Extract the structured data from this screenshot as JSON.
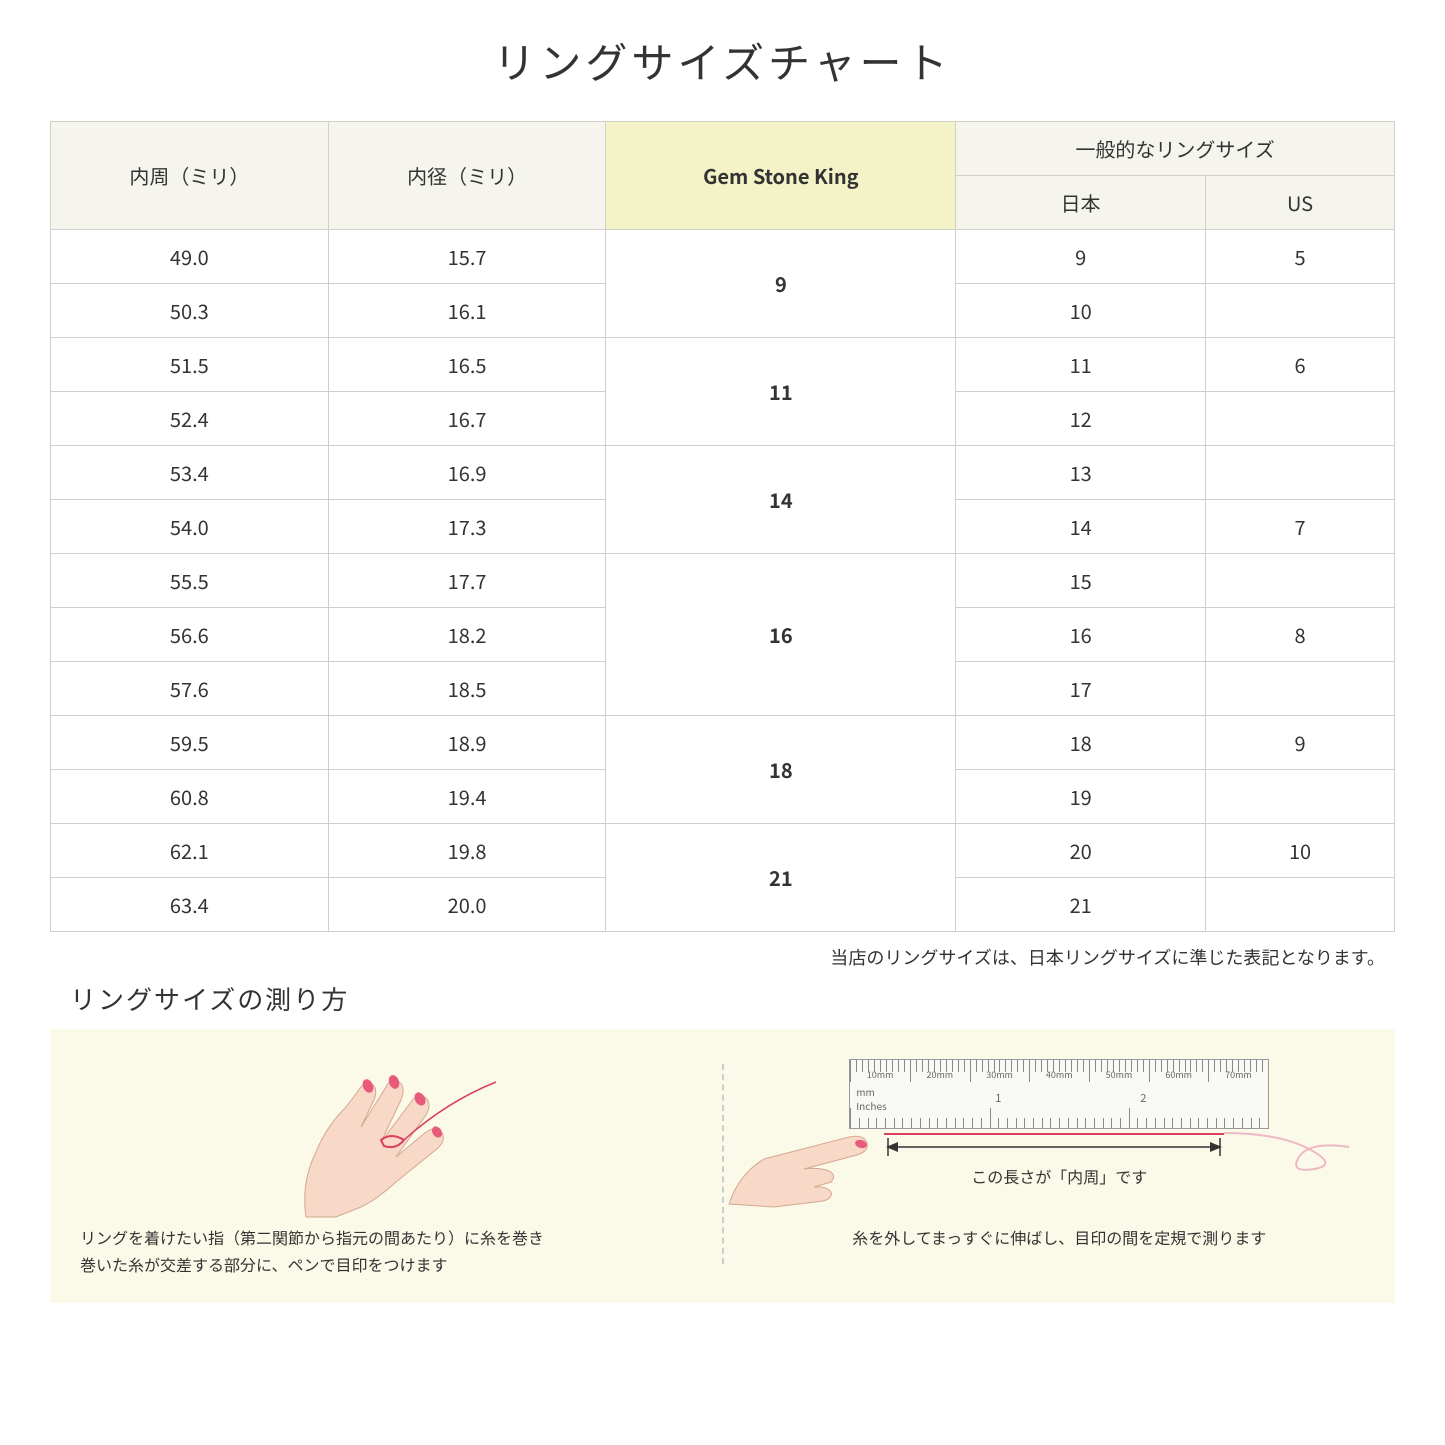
{
  "title": "リングサイズチャート",
  "table": {
    "headers": {
      "circumference": "内周（ミリ）",
      "diameter": "内径（ミリ）",
      "gsk": "Gem Stone King",
      "general": "一般的なリングサイズ",
      "japan": "日本",
      "us": "US"
    },
    "groups": [
      {
        "gsk": "9",
        "rows": [
          {
            "circ": "49.0",
            "dia": "15.7",
            "jp": "9",
            "us": "5"
          },
          {
            "circ": "50.3",
            "dia": "16.1",
            "jp": "10",
            "us": ""
          }
        ]
      },
      {
        "gsk": "11",
        "rows": [
          {
            "circ": "51.5",
            "dia": "16.5",
            "jp": "11",
            "us": "6"
          },
          {
            "circ": "52.4",
            "dia": "16.7",
            "jp": "12",
            "us": ""
          }
        ]
      },
      {
        "gsk": "14",
        "rows": [
          {
            "circ": "53.4",
            "dia": "16.9",
            "jp": "13",
            "us": ""
          },
          {
            "circ": "54.0",
            "dia": "17.3",
            "jp": "14",
            "us": "7"
          }
        ]
      },
      {
        "gsk": "16",
        "rows": [
          {
            "circ": "55.5",
            "dia": "17.7",
            "jp": "15",
            "us": ""
          },
          {
            "circ": "56.6",
            "dia": "18.2",
            "jp": "16",
            "us": "8"
          },
          {
            "circ": "57.6",
            "dia": "18.5",
            "jp": "17",
            "us": ""
          }
        ]
      },
      {
        "gsk": "18",
        "rows": [
          {
            "circ": "59.5",
            "dia": "18.9",
            "jp": "18",
            "us": "9"
          },
          {
            "circ": "60.8",
            "dia": "19.4",
            "jp": "19",
            "us": ""
          }
        ]
      },
      {
        "gsk": "21",
        "rows": [
          {
            "circ": "62.1",
            "dia": "19.8",
            "jp": "20",
            "us": "10"
          },
          {
            "circ": "63.4",
            "dia": "20.0",
            "jp": "21",
            "us": ""
          }
        ]
      }
    ]
  },
  "note": "当店のリングサイズは、日本リングサイズに準じた表記となります。",
  "subtitle": "リングサイズの測り方",
  "instructions": {
    "left_caption": "リングを着けたい指（第二関節から指元の間あたり）に糸を巻き\n巻いた糸が交差する部分に、ペンで目印をつけます",
    "right_measure_label": "この長さが「内周」です",
    "right_caption": "糸を外してまっすぐに伸ばし、目印の間を定規で測ります",
    "ruler_mm_labels": [
      "10mm",
      "20mm",
      "30mm",
      "40mm",
      "50mm",
      "60mm",
      "70mm"
    ],
    "ruler_unit_mm": "mm",
    "ruler_unit_in": "Inches",
    "ruler_in_labels": [
      "1",
      "2"
    ]
  },
  "colors": {
    "header_bg": "#f5f5ee",
    "highlight_bg": "#f4f3c8",
    "border": "#d0d0c8",
    "instruction_bg": "#fbfae8",
    "thread": "#d94060",
    "skin": "#f8d9c8",
    "nail": "#e85a7a"
  }
}
